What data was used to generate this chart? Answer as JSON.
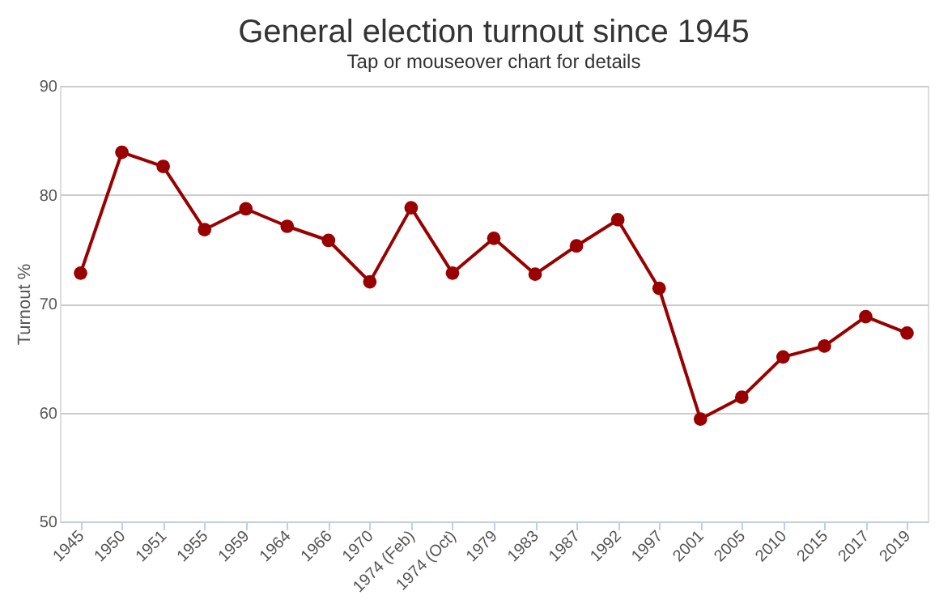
{
  "chart_data": {
    "type": "line",
    "title": "General election turnout since 1945",
    "subtitle": "Tap or mouseover chart for details",
    "ylabel": "Turnout %",
    "categories": [
      "1945",
      "1950",
      "1951",
      "1955",
      "1959",
      "1964",
      "1966",
      "1970",
      "1974 (Feb)",
      "1974 (Oct)",
      "1979",
      "1983",
      "1987",
      "1992",
      "1997",
      "2001",
      "2005",
      "2010",
      "2015",
      "2017",
      "2019"
    ],
    "series": [
      {
        "color": "#990000",
        "values": [
          72.8,
          83.9,
          82.6,
          76.8,
          78.7,
          77.1,
          75.8,
          72.0,
          78.8,
          72.8,
          76.0,
          72.7,
          75.3,
          77.7,
          71.4,
          59.4,
          61.4,
          65.1,
          66.1,
          68.8,
          67.3
        ]
      }
    ],
    "ylim": [
      50,
      90
    ],
    "yticks": [
      50,
      60,
      70,
      80,
      90
    ],
    "grid": "y",
    "marker": "circle",
    "line_style": "solid",
    "legend": false
  }
}
